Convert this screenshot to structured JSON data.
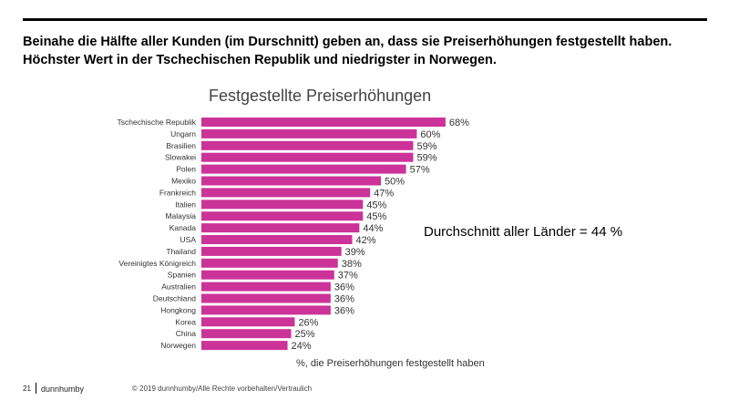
{
  "headline": {
    "line1": "Beinahe die Hälfte aller Kunden (im Durschnitt) geben an, dass sie Preiserhöhungen festgestellt haben.",
    "line2": "Höchster Wert in der Tschechischen Republik und niedrigster in Norwegen."
  },
  "average_note": "Durchschnitt aller Länder = 44 %",
  "footer": {
    "page_number": "21",
    "brand": "dunnhumby",
    "copyright": "© 2019 dunnhumby/Alle Rechte vorbehalten/Vertraulich"
  },
  "colors": {
    "bar": "#cc3399",
    "label": "#333333"
  },
  "chart_data": {
    "type": "bar",
    "orientation": "horizontal",
    "title": "Festgestellte Preiserhöhungen",
    "xlabel": "%, die Preiserhöhungen festgestellt haben",
    "ylabel": "",
    "xlim": [
      0,
      100
    ],
    "value_suffix": "%",
    "categories": [
      "Tschechische Republik",
      "Ungarn",
      "Brasilien",
      "Slowakei",
      "Polen",
      "Mexiko",
      "Frankreich",
      "Italien",
      "Malaysia",
      "Kanada",
      "USA",
      "Thailand",
      "Vereinigtes Königreich",
      "Spanien",
      "Australien",
      "Deutschland",
      "Hongkong",
      "Korea",
      "China",
      "Norwegen"
    ],
    "values": [
      68,
      60,
      59,
      59,
      57,
      50,
      47,
      45,
      45,
      44,
      42,
      39,
      38,
      37,
      36,
      36,
      36,
      26,
      25,
      24
    ],
    "grid": false,
    "legend": "none"
  }
}
